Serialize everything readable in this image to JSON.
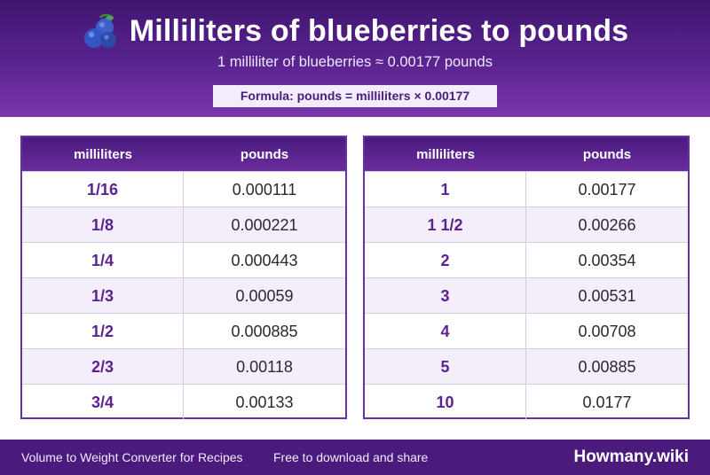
{
  "header": {
    "icon": "blueberries-icon",
    "title": "Milliliters of blueberries to pounds",
    "subtitle": "1 milliliter of blueberries ≈ 0.00177 pounds",
    "formula": "Formula: pounds = milliliters × 0.00177"
  },
  "tables": [
    {
      "columns": [
        "milliliters",
        "pounds"
      ],
      "rows": [
        [
          "1/16",
          "0.000111"
        ],
        [
          "1/8",
          "0.000221"
        ],
        [
          "1/4",
          "0.000443"
        ],
        [
          "1/3",
          "0.00059"
        ],
        [
          "1/2",
          "0.000885"
        ],
        [
          "2/3",
          "0.00118"
        ],
        [
          "3/4",
          "0.00133"
        ]
      ]
    },
    {
      "columns": [
        "milliliters",
        "pounds"
      ],
      "rows": [
        [
          "1",
          "0.00177"
        ],
        [
          "1 1/2",
          "0.00266"
        ],
        [
          "2",
          "0.00354"
        ],
        [
          "3",
          "0.00531"
        ],
        [
          "4",
          "0.00708"
        ],
        [
          "5",
          "0.00885"
        ],
        [
          "10",
          "0.0177"
        ]
      ]
    }
  ],
  "footer": {
    "left_text": "Volume to Weight Converter for Recipes",
    "middle_text": "Free to download and share",
    "brand": "Howmany.wiki"
  },
  "colors": {
    "header_dark": "#3f1670",
    "header_light": "#7a37ad",
    "accent_text": "#5a2390",
    "footer_bg": "#4a1b7d",
    "row_alt": "#f3eef9"
  }
}
